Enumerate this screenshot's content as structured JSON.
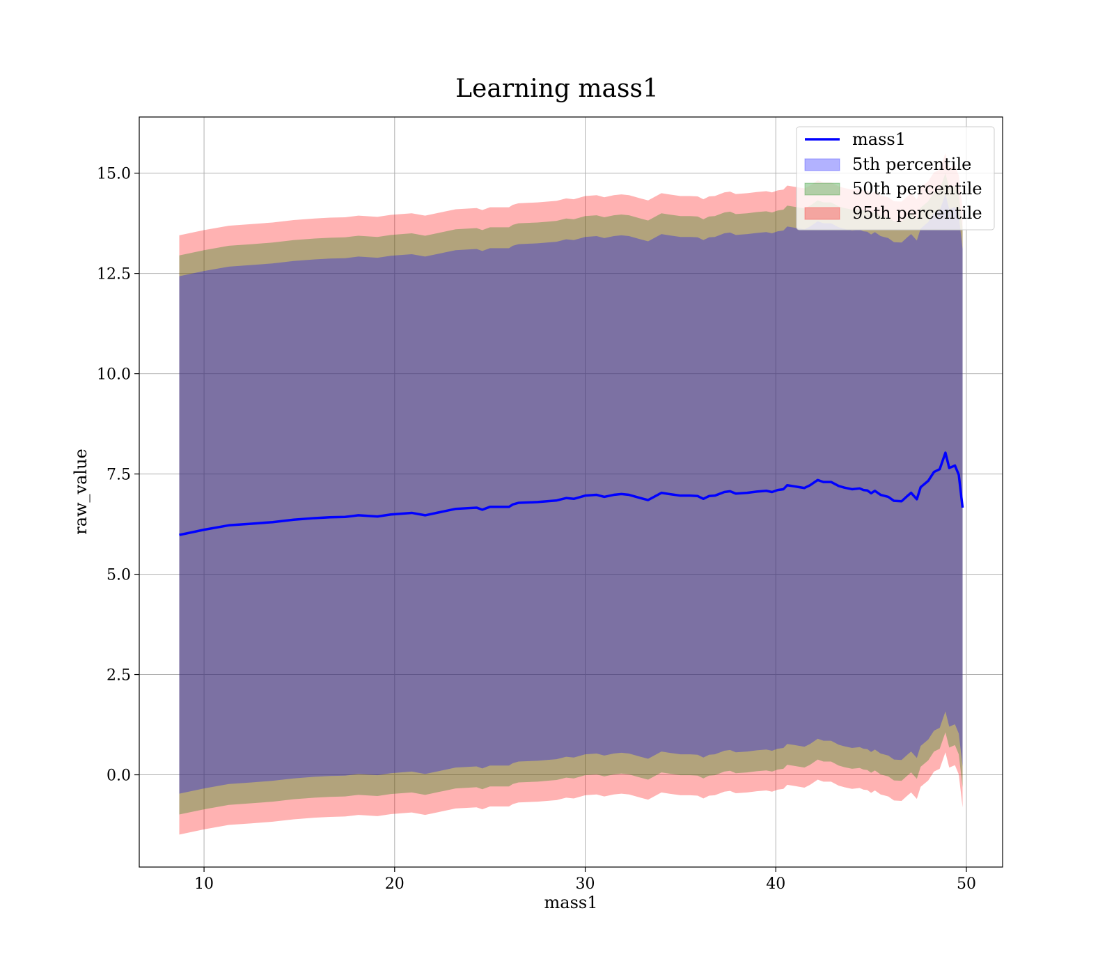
{
  "chart_data": {
    "type": "area",
    "title": "Learning mass1",
    "xlabel": "mass1",
    "ylabel": "raw_value",
    "xlim": [
      6.6,
      51.9
    ],
    "ylim": [
      -2.3,
      16.4
    ],
    "xticks": [
      10,
      20,
      30,
      40,
      50
    ],
    "yticks": [
      0.0,
      2.5,
      5.0,
      7.5,
      10.0,
      12.5,
      15.0
    ],
    "grid": true,
    "legend_position": "top-right",
    "colors": {
      "line": "#0000ff",
      "band_5th": "#0000ff",
      "band_50th": "#008000",
      "band_95th": "#ff0000"
    },
    "x": [
      8.7,
      10.0,
      11.3,
      12.5,
      13.6,
      14.7,
      15.8,
      16.6,
      17.4,
      18.1,
      19.1,
      19.8,
      20.9,
      21.6,
      22.3,
      23.2,
      24.3,
      24.6,
      25.0,
      26.0,
      26.2,
      26.5,
      27.5,
      28.0,
      28.5,
      29.0,
      29.4,
      30.0,
      30.6,
      31.0,
      31.5,
      31.9,
      32.3,
      32.9,
      33.3,
      34.0,
      34.4,
      35.0,
      35.5,
      35.9,
      36.2,
      36.5,
      36.8,
      37.3,
      37.6,
      37.9,
      38.5,
      39.0,
      39.5,
      39.8,
      40.1,
      40.4,
      40.6,
      41.0,
      41.5,
      41.8,
      42.2,
      42.5,
      42.9,
      43.3,
      43.6,
      44.0,
      44.4,
      44.6,
      44.8,
      45.0,
      45.2,
      45.5,
      45.9,
      46.2,
      46.6,
      46.9,
      47.1,
      47.4,
      47.6,
      48.0,
      48.3,
      48.6,
      48.9,
      49.1,
      49.4,
      49.6,
      49.8
    ],
    "series": [
      {
        "name": "mass1",
        "values": [
          5.98,
          6.11,
          6.22,
          6.26,
          6.3,
          6.36,
          6.4,
          6.42,
          6.43,
          6.47,
          6.44,
          6.49,
          6.53,
          6.47,
          6.54,
          6.63,
          6.66,
          6.61,
          6.68,
          6.68,
          6.74,
          6.78,
          6.8,
          6.82,
          6.84,
          6.9,
          6.88,
          6.96,
          6.98,
          6.93,
          6.98,
          7.0,
          6.98,
          6.9,
          6.85,
          7.03,
          7.0,
          6.96,
          6.96,
          6.95,
          6.88,
          6.95,
          6.96,
          7.05,
          7.07,
          7.01,
          7.03,
          7.06,
          7.08,
          7.05,
          7.1,
          7.12,
          7.22,
          7.19,
          7.15,
          7.22,
          7.35,
          7.3,
          7.3,
          7.2,
          7.16,
          7.12,
          7.14,
          7.1,
          7.09,
          7.02,
          7.08,
          6.98,
          6.93,
          6.83,
          6.82,
          6.95,
          7.03,
          6.87,
          7.17,
          7.33,
          7.55,
          7.62,
          8.03,
          7.65,
          7.71,
          7.48,
          6.66
        ]
      },
      {
        "name": "5th percentile",
        "upper_offset": 6.45,
        "lower_offset": 6.45
      },
      {
        "name": "50th percentile",
        "upper_offset": 6.97,
        "lower_offset": 6.97
      },
      {
        "name": "95th percentile",
        "upper_offset": 7.47,
        "lower_offset": 7.47
      }
    ]
  }
}
